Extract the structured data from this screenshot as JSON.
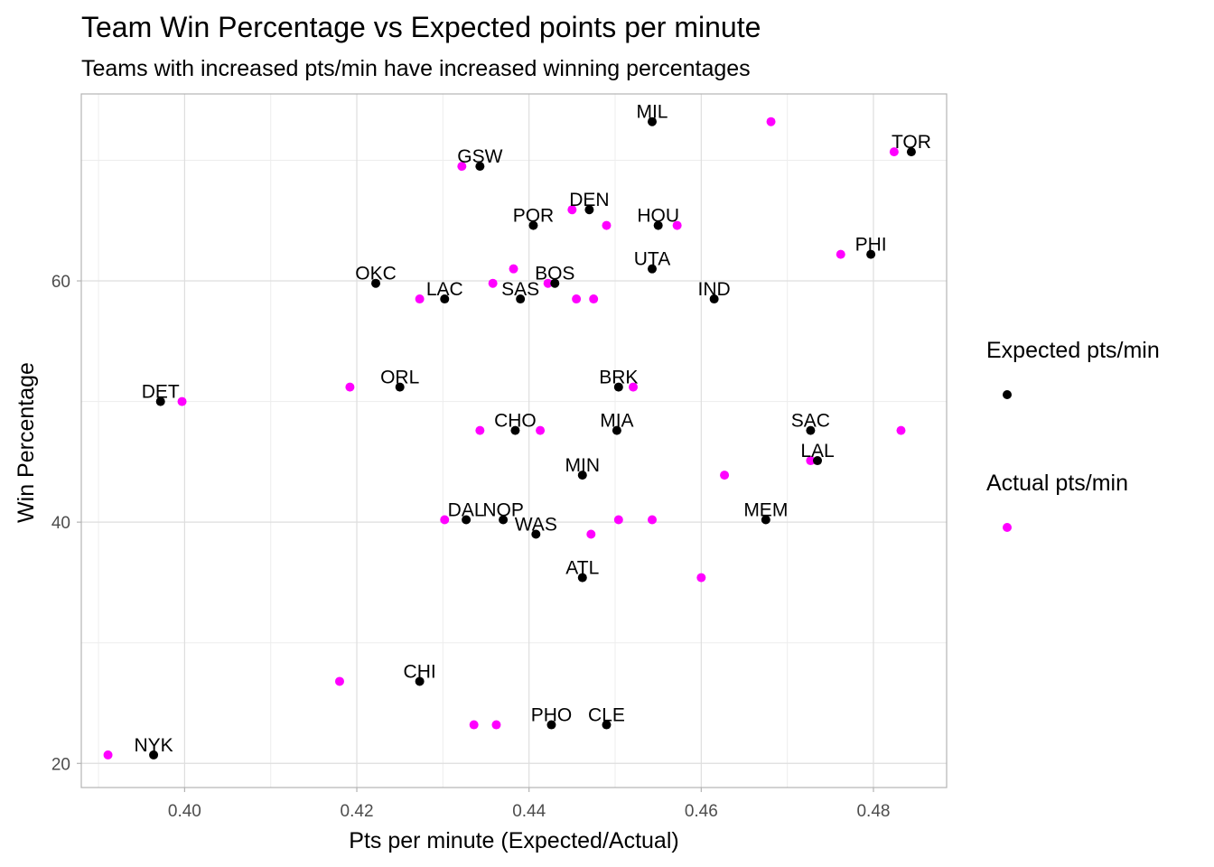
{
  "chart_data": {
    "type": "scatter",
    "title": "Team Win Percentage vs Expected points per minute",
    "subtitle": "Teams with increased pts/min have increased winning percentages",
    "xlabel": "Pts per minute (Expected/Actual)",
    "ylabel": "Win Percentage",
    "xlim": [
      0.388,
      0.4885
    ],
    "ylim": [
      18,
      75.5
    ],
    "x_ticks": [
      0.4,
      0.42,
      0.44,
      0.46,
      0.48
    ],
    "x_tick_labels": [
      "0.40",
      "0.42",
      "0.44",
      "0.46",
      "0.48"
    ],
    "y_ticks": [
      20,
      40,
      60
    ],
    "y_tick_labels": [
      "20",
      "40",
      "60"
    ],
    "y_minor_gridlines": [
      30,
      50,
      70
    ],
    "x_minor_gridlines": [
      0.39,
      0.41,
      0.43,
      0.45,
      0.47
    ],
    "grid": true,
    "legend_position": "right",
    "series": [
      {
        "name": "Expected pts/min",
        "color": "#000000",
        "labeled": true,
        "points": [
          {
            "team": "MIL",
            "x": 0.4543,
            "y": 73.2
          },
          {
            "team": "TOR",
            "x": 0.4844,
            "y": 70.7
          },
          {
            "team": "GSW",
            "x": 0.4343,
            "y": 69.5
          },
          {
            "team": "DEN",
            "x": 0.447,
            "y": 65.9
          },
          {
            "team": "POR",
            "x": 0.4405,
            "y": 64.6
          },
          {
            "team": "HOU",
            "x": 0.455,
            "y": 64.6
          },
          {
            "team": "PHI",
            "x": 0.4797,
            "y": 62.2
          },
          {
            "team": "UTA",
            "x": 0.4543,
            "y": 61.0
          },
          {
            "team": "OKC",
            "x": 0.4222,
            "y": 59.8
          },
          {
            "team": "BOS",
            "x": 0.443,
            "y": 59.8
          },
          {
            "team": "LAC",
            "x": 0.4302,
            "y": 58.5
          },
          {
            "team": "SAS",
            "x": 0.439,
            "y": 58.5
          },
          {
            "team": "IND",
            "x": 0.4615,
            "y": 58.5
          },
          {
            "team": "BRK",
            "x": 0.4504,
            "y": 51.2
          },
          {
            "team": "ORL",
            "x": 0.425,
            "y": 51.2
          },
          {
            "team": "DET",
            "x": 0.3972,
            "y": 50.0
          },
          {
            "team": "CHO",
            "x": 0.4384,
            "y": 47.6
          },
          {
            "team": "MIA",
            "x": 0.4502,
            "y": 47.6
          },
          {
            "team": "SAC",
            "x": 0.4727,
            "y": 47.6
          },
          {
            "team": "LAL",
            "x": 0.4735,
            "y": 45.1
          },
          {
            "team": "MIN",
            "x": 0.4462,
            "y": 43.9
          },
          {
            "team": "DAL",
            "x": 0.4327,
            "y": 40.2
          },
          {
            "team": "NOP",
            "x": 0.437,
            "y": 40.2
          },
          {
            "team": "MEM",
            "x": 0.4675,
            "y": 40.2
          },
          {
            "team": "WAS",
            "x": 0.4408,
            "y": 39.0
          },
          {
            "team": "ATL",
            "x": 0.4462,
            "y": 35.4
          },
          {
            "team": "CHI",
            "x": 0.4273,
            "y": 26.8
          },
          {
            "team": "PHO",
            "x": 0.4426,
            "y": 23.2
          },
          {
            "team": "CLE",
            "x": 0.449,
            "y": 23.2
          },
          {
            "team": "NYK",
            "x": 0.3964,
            "y": 20.7
          }
        ]
      },
      {
        "name": "Actual pts/min",
        "color": "#ff00ff",
        "labeled": false,
        "points": [
          {
            "x": 0.4681,
            "y": 73.2
          },
          {
            "x": 0.4824,
            "y": 70.7
          },
          {
            "x": 0.4322,
            "y": 69.5
          },
          {
            "x": 0.445,
            "y": 65.9
          },
          {
            "x": 0.449,
            "y": 64.6
          },
          {
            "x": 0.4572,
            "y": 64.6
          },
          {
            "x": 0.4762,
            "y": 62.2
          },
          {
            "x": 0.4382,
            "y": 61.0
          },
          {
            "x": 0.4358,
            "y": 59.8
          },
          {
            "x": 0.4422,
            "y": 59.8
          },
          {
            "x": 0.4273,
            "y": 58.5
          },
          {
            "x": 0.4455,
            "y": 58.5
          },
          {
            "x": 0.4475,
            "y": 58.5
          },
          {
            "x": 0.4521,
            "y": 51.2
          },
          {
            "x": 0.4192,
            "y": 51.2
          },
          {
            "x": 0.3997,
            "y": 50.0
          },
          {
            "x": 0.4343,
            "y": 47.6
          },
          {
            "x": 0.4413,
            "y": 47.6
          },
          {
            "x": 0.4832,
            "y": 47.6
          },
          {
            "x": 0.4727,
            "y": 45.1
          },
          {
            "x": 0.4627,
            "y": 43.9
          },
          {
            "x": 0.4302,
            "y": 40.2
          },
          {
            "x": 0.4504,
            "y": 40.2
          },
          {
            "x": 0.4543,
            "y": 40.2
          },
          {
            "x": 0.4472,
            "y": 39.0
          },
          {
            "x": 0.46,
            "y": 35.4
          },
          {
            "x": 0.418,
            "y": 26.8
          },
          {
            "x": 0.4336,
            "y": 23.2
          },
          {
            "x": 0.4362,
            "y": 23.2
          },
          {
            "x": 0.3911,
            "y": 20.7
          }
        ]
      }
    ]
  }
}
